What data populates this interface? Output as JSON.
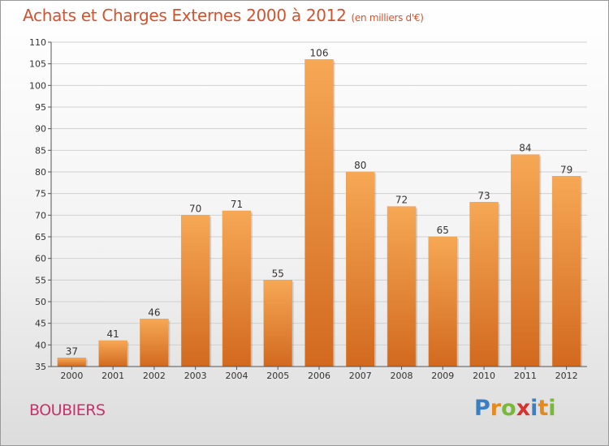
{
  "header": {
    "title": "Achats et Charges Externes 2000 à 2012",
    "subtitle": "(en milliers d'€)"
  },
  "footer": {
    "city": "BOUBIERS",
    "logo_letters": [
      "P",
      "r",
      "o",
      "x",
      "i",
      "t",
      "i"
    ],
    "logo_colors": [
      "#3a7fc4",
      "#e58a1f",
      "#7ab83a",
      "#d9322c",
      "#3a7fc4",
      "#e58a1f",
      "#7ab83a"
    ]
  },
  "colors": {
    "bar_top": "#f6a855",
    "bar_bottom": "#d2691e",
    "title": "#d4522e"
  },
  "chart_data": {
    "type": "bar",
    "title": "Achats et Charges Externes 2000 à 2012",
    "subtitle": "(en milliers d'€)",
    "xlabel": "",
    "ylabel": "",
    "ylim": [
      35,
      110
    ],
    "yticks": [
      35,
      40,
      45,
      50,
      55,
      60,
      65,
      70,
      75,
      80,
      85,
      90,
      95,
      100,
      105,
      110
    ],
    "grid": true,
    "categories": [
      "2000",
      "2001",
      "2002",
      "2003",
      "2004",
      "2005",
      "2006",
      "2007",
      "2008",
      "2009",
      "2010",
      "2011",
      "2012"
    ],
    "values": [
      37,
      41,
      46,
      70,
      71,
      55,
      106,
      80,
      72,
      65,
      73,
      84,
      79
    ]
  }
}
